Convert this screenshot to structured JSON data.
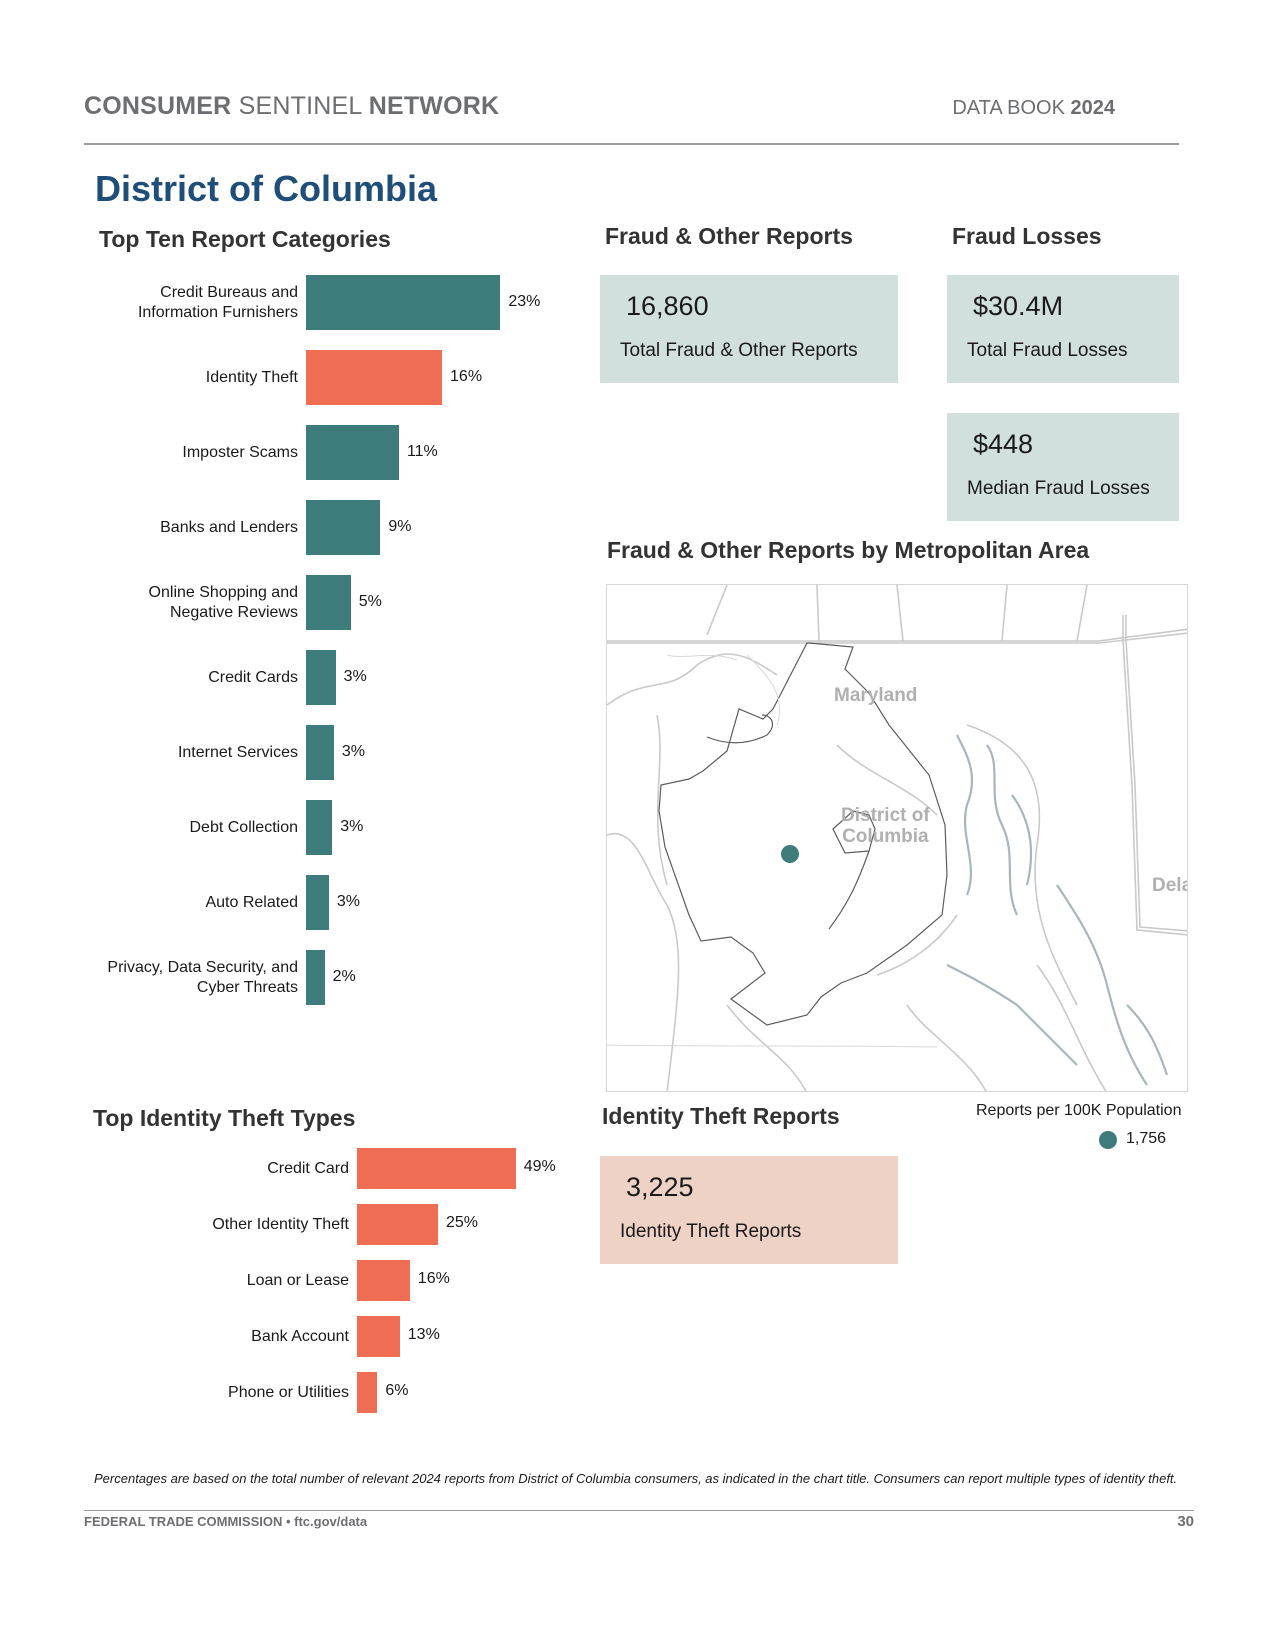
{
  "header": {
    "brand_part1": "CONSUMER",
    "brand_part2": "SENTINEL",
    "brand_part3": "NETWORK",
    "book_label": "DATA BOOK",
    "book_year": "2024"
  },
  "state_title": "District of Columbia",
  "top_ten": {
    "title": "Top Ten Report Categories",
    "accent_color": "#ef6e53",
    "base_color": "#3d7c7a"
  },
  "fraud_reports": {
    "title": "Fraud & Other Reports",
    "total_value": "16,860",
    "total_label": "Total Fraud & Other Reports"
  },
  "fraud_losses": {
    "title": "Fraud Losses",
    "total_value": "$30.4M",
    "total_label": "Total Fraud Losses",
    "median_value": "$448",
    "median_label": "Median Fraud Losses"
  },
  "map": {
    "title": "Fraud & Other Reports by Metropolitan Area",
    "label_maryland": "Maryland",
    "label_dc_line1": "District of",
    "label_dc_line2": "Columbia",
    "label_delaware": "Dela",
    "legend_title": "Reports per 100K Population",
    "legend_value": "1,756",
    "dot_color": "#3d7c7a"
  },
  "identity_types": {
    "title": "Top Identity Theft Types"
  },
  "identity_reports": {
    "title": "Identity Theft Reports",
    "value": "3,225",
    "label": "Identity Theft Reports"
  },
  "footnote": "Percentages are based on the total number of relevant 2024 reports from District of Columbia consumers, as indicated in the chart title.  Consumers can report multiple types of identity theft.",
  "footer": {
    "left": "FEDERAL TRADE COMMISSION • ftc.gov/data",
    "page": "30"
  },
  "chart_data": [
    {
      "type": "bar",
      "orientation": "horizontal",
      "title": "Top Ten Report Categories",
      "categories": [
        [
          "Credit Bureaus and",
          "Information Furnishers"
        ],
        [
          "Identity Theft"
        ],
        [
          "Imposter Scams"
        ],
        [
          "Banks and Lenders"
        ],
        [
          "Online Shopping and",
          "Negative Reviews"
        ],
        [
          "Credit Cards"
        ],
        [
          "Internet Services"
        ],
        [
          "Debt Collection"
        ],
        [
          "Auto Related"
        ],
        [
          "Privacy, Data Security, and",
          "Cyber Threats"
        ]
      ],
      "values": [
        23,
        16,
        11,
        9,
        5,
        3,
        3,
        3,
        3,
        2
      ],
      "value_labels": [
        "23%",
        "16%",
        "11%",
        "9%",
        "5%",
        "3%",
        "3%",
        "3%",
        "3%",
        "2%"
      ],
      "precise_values": [
        23.0,
        16.1,
        11.0,
        8.8,
        5.3,
        3.5,
        3.3,
        3.1,
        2.7,
        2.2
      ],
      "highlight_index": 1
    },
    {
      "type": "bar",
      "orientation": "horizontal",
      "title": "Top Identity Theft Types",
      "categories": [
        [
          "Credit Card"
        ],
        [
          "Other Identity Theft"
        ],
        [
          "Loan or Lease"
        ],
        [
          "Bank Account"
        ],
        [
          "Phone or Utilities"
        ]
      ],
      "values": [
        49,
        25,
        16,
        13,
        6
      ],
      "value_labels": [
        "49%",
        "25%",
        "16%",
        "13%",
        "6%"
      ],
      "precise_values": [
        49,
        25,
        16.3,
        13.2,
        6.3
      ]
    }
  ]
}
